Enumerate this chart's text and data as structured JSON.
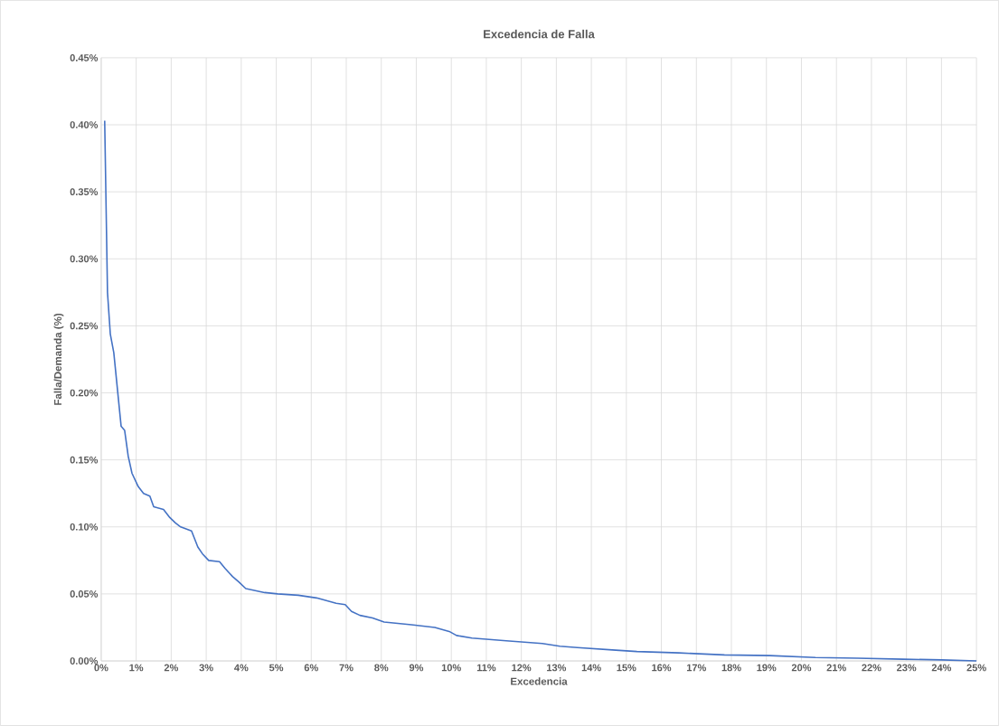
{
  "chart_data": {
    "type": "line",
    "title": "Excedencia de Falla",
    "xlabel": "Excedencia",
    "ylabel": "Falla/Demanda (%)",
    "x": [
      0.1,
      0.18,
      0.26,
      0.36,
      0.57,
      0.67,
      0.77,
      0.88,
      1.06,
      1.21,
      1.39,
      1.5,
      1.78,
      1.96,
      2.12,
      2.27,
      2.58,
      2.76,
      2.89,
      3.07,
      3.38,
      3.54,
      3.75,
      3.93,
      4.13,
      4.67,
      5.04,
      5.63,
      6.15,
      6.71,
      6.97,
      7.15,
      7.39,
      7.75,
      8.08,
      8.86,
      9.53,
      9.94,
      10.15,
      10.59,
      11.57,
      12.6,
      13.1,
      13.6,
      14.7,
      15.3,
      16.5,
      17.8,
      19.1,
      20.4,
      21.6,
      22.9,
      24.0,
      25.0
    ],
    "series": [
      {
        "color": "#4472c4",
        "values": [
          0.403,
          0.275,
          0.244,
          0.23,
          0.175,
          0.172,
          0.153,
          0.14,
          0.13,
          0.125,
          0.123,
          0.115,
          0.113,
          0.107,
          0.103,
          0.1,
          0.097,
          0.085,
          0.08,
          0.075,
          0.074,
          0.069,
          0.063,
          0.059,
          0.054,
          0.051,
          0.05,
          0.049,
          0.047,
          0.043,
          0.042,
          0.037,
          0.034,
          0.032,
          0.029,
          0.027,
          0.025,
          0.022,
          0.019,
          0.017,
          0.015,
          0.013,
          0.011,
          0.01,
          0.008,
          0.007,
          0.006,
          0.0045,
          0.004,
          0.0025,
          0.002,
          0.0013,
          0.0008,
          0.0
        ]
      }
    ],
    "xlim": [
      0,
      25
    ],
    "xticks": [
      {
        "value": 0,
        "label": "0%"
      },
      {
        "value": 1,
        "label": "1%"
      },
      {
        "value": 2,
        "label": "2%"
      },
      {
        "value": 3,
        "label": "3%"
      },
      {
        "value": 4,
        "label": "4%"
      },
      {
        "value": 5,
        "label": "5%"
      },
      {
        "value": 6,
        "label": "6%"
      },
      {
        "value": 7,
        "label": "7%"
      },
      {
        "value": 8,
        "label": "8%"
      },
      {
        "value": 9,
        "label": "9%"
      },
      {
        "value": 10,
        "label": "10%"
      },
      {
        "value": 11,
        "label": "11%"
      },
      {
        "value": 12,
        "label": "12%"
      },
      {
        "value": 13,
        "label": "13%"
      },
      {
        "value": 14,
        "label": "14%"
      },
      {
        "value": 15,
        "label": "15%"
      },
      {
        "value": 16,
        "label": "16%"
      },
      {
        "value": 17,
        "label": "17%"
      },
      {
        "value": 18,
        "label": "18%"
      },
      {
        "value": 19,
        "label": "19%"
      },
      {
        "value": 20,
        "label": "20%"
      },
      {
        "value": 21,
        "label": "21%"
      },
      {
        "value": 22,
        "label": "22%"
      },
      {
        "value": 23,
        "label": "23%"
      },
      {
        "value": 24,
        "label": "24%"
      },
      {
        "value": 25,
        "label": "25%"
      }
    ],
    "ylim": [
      0,
      0.45
    ],
    "yticks": [
      {
        "value": 0,
        "label": "0.00%"
      },
      {
        "value": 0.05,
        "label": "0.05%"
      },
      {
        "value": 0.1,
        "label": "0.10%"
      },
      {
        "value": 0.15,
        "label": "0.15%"
      },
      {
        "value": 0.2,
        "label": "0.20%"
      },
      {
        "value": 0.25,
        "label": "0.25%"
      },
      {
        "value": 0.3,
        "label": "0.30%"
      },
      {
        "value": 0.35,
        "label": "0.35%"
      },
      {
        "value": 0.4,
        "label": "0.40%"
      },
      {
        "value": 0.45,
        "label": "0.45%"
      }
    ],
    "grid": true,
    "legend": false,
    "marker": "none",
    "line_style": "solid"
  }
}
